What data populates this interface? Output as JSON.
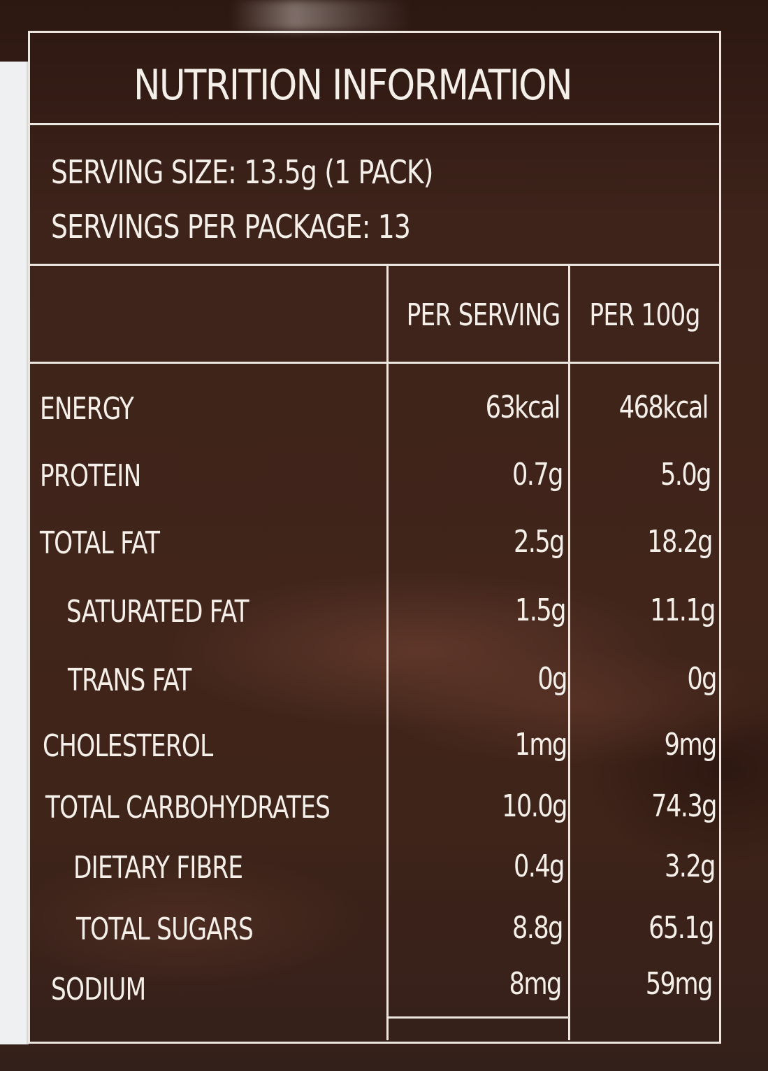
{
  "label": {
    "title": "NUTRITION INFORMATION",
    "serving_size": "SERVING SIZE: 13.5g (1 PACK)",
    "servings_per_package": "SERVINGS PER PACKAGE: 13",
    "columns": [
      "PER SERVING",
      "PER 100g"
    ],
    "rows": [
      {
        "name": "ENERGY",
        "per_serving": "63kcal",
        "per_100g": "468kcal"
      },
      {
        "name": "PROTEIN",
        "per_serving": "0.7g",
        "per_100g": "5.0g"
      },
      {
        "name": "TOTAL FAT",
        "per_serving": "2.5g",
        "per_100g": "18.2g"
      },
      {
        "name": "SATURATED FAT",
        "per_serving": "1.5g",
        "per_100g": "11.1g"
      },
      {
        "name": "TRANS FAT",
        "per_serving": "0g",
        "per_100g": "0g"
      },
      {
        "name": "CHOLESTEROL",
        "per_serving": "1mg",
        "per_100g": "9mg"
      },
      {
        "name": "TOTAL CARBOHYDRATES",
        "per_serving": "10.0g",
        "per_100g": "74.3g"
      },
      {
        "name": "DIETARY FIBRE",
        "per_serving": "0.4g",
        "per_100g": "3.2g"
      },
      {
        "name": "TOTAL SUGARS",
        "per_serving": "8.8g",
        "per_100g": "65.1g"
      },
      {
        "name": "SODIUM",
        "per_serving": "8mg",
        "per_100g": "59mg"
      }
    ]
  },
  "colors": {
    "package_brown": "#3f2419",
    "print_white": "#f4efe9"
  }
}
